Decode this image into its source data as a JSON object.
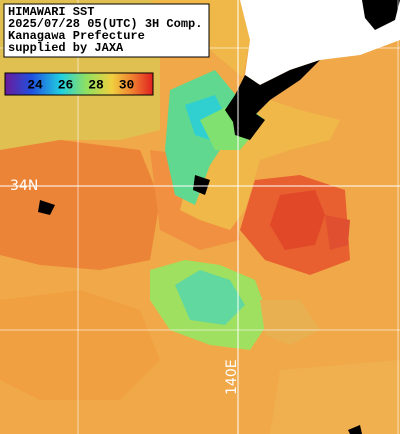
{
  "header": {
    "lines": [
      "HIMAWARI SST",
      "2025/07/28 05(UTC) 3H Comp.",
      "Kanagawa Prefecture",
      "supplied by JAXA"
    ]
  },
  "colorbar": {
    "labels": [
      "24",
      "26",
      "28",
      "30"
    ]
  },
  "grid_labels": {
    "latitude": "34N",
    "longitude": "140E"
  }
}
